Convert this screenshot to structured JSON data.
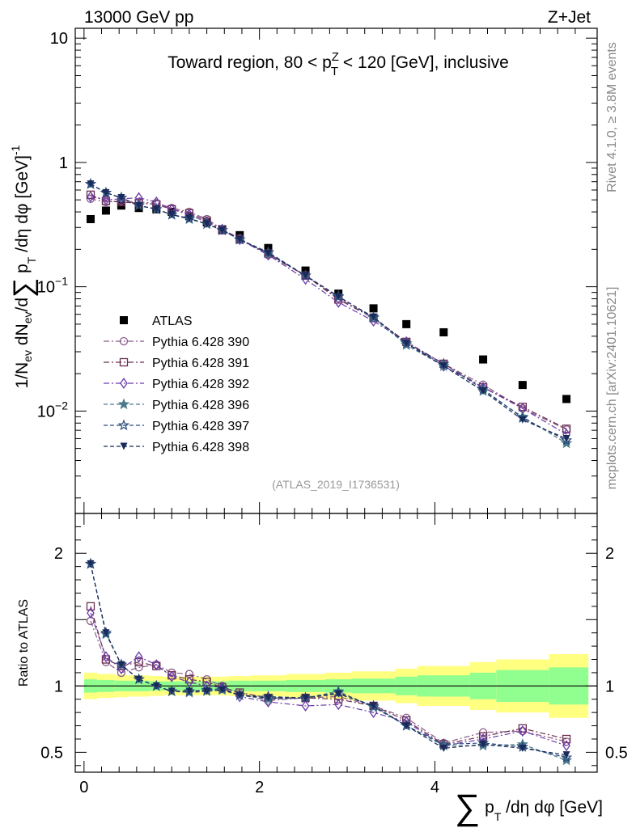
{
  "header": {
    "left": "13000 GeV pp",
    "right": "Z+Jet"
  },
  "side_labels": {
    "rivet": "Rivet 4.1.0, ≥ 3.8M events",
    "mcplots": "mcplots.cern.ch [arXiv:2401.10621]"
  },
  "chart_data": [
    {
      "type": "scatter",
      "panel": "main",
      "title": "Toward region, 80 < p_T^Z < 120 [GeV], inclusive",
      "title_parts": {
        "pre": "Toward region, 80 < p",
        "sup": "Z",
        "sub": "T",
        "post": " < 120 [GeV], inclusive"
      },
      "analysis_label": "(ATLAS_2019_I1736531)",
      "ylabel": "1/N_ev dN_ev/d∑p_T/dη dφ [GeV]^-1",
      "yscale": "log",
      "ylim": [
        0.0015,
        12
      ],
      "xlim": [
        -0.1,
        5.85
      ],
      "yticks": [
        {
          "value": 10,
          "label": "10"
        },
        {
          "value": 1,
          "label": "1"
        },
        {
          "value": 0.1,
          "label": "10",
          "exp": "−1"
        },
        {
          "value": 0.01,
          "label": "10",
          "exp": "−2"
        }
      ],
      "x": [
        0.075,
        0.25,
        0.425,
        0.625,
        0.825,
        1.0,
        1.2,
        1.4,
        1.575,
        1.775,
        2.1,
        2.525,
        2.9,
        3.3,
        3.675,
        4.1,
        4.55,
        5.0,
        5.5
      ],
      "series": [
        {
          "name": "ATLAS",
          "marker": "filled-square",
          "color": "#000000",
          "values": [
            0.35,
            0.41,
            0.45,
            0.43,
            0.42,
            0.4,
            0.37,
            0.33,
            0.29,
            0.26,
            0.205,
            0.135,
            0.088,
            0.067,
            0.05,
            0.043,
            0.026,
            0.0162,
            0.0125
          ]
        },
        {
          "name": "Pythia 6.428 390",
          "marker": "open-circle",
          "color": "#8a5a8a",
          "line": "dash-dot",
          "values": [
            0.51,
            0.48,
            0.49,
            0.48,
            0.47,
            0.43,
            0.4,
            0.35,
            0.29,
            0.245,
            0.18,
            0.123,
            0.081,
            0.056,
            0.036,
            0.024,
            0.0163,
            0.0105,
            0.0071
          ]
        },
        {
          "name": "Pythia 6.428 391",
          "marker": "open-square",
          "color": "#6a3050",
          "line": "dash-dot",
          "values": [
            0.55,
            0.49,
            0.48,
            0.47,
            0.46,
            0.42,
            0.39,
            0.34,
            0.285,
            0.24,
            0.185,
            0.123,
            0.079,
            0.056,
            0.036,
            0.024,
            0.0155,
            0.0108,
            0.0072
          ]
        },
        {
          "name": "Pythia 6.428 392",
          "marker": "open-diamond",
          "color": "#6a3aa8",
          "line": "dash-dot",
          "values": [
            0.53,
            0.5,
            0.51,
            0.52,
            0.48,
            0.42,
            0.38,
            0.33,
            0.29,
            0.24,
            0.18,
            0.115,
            0.075,
            0.053,
            0.036,
            0.023,
            0.0155,
            0.0105,
            0.0065
          ]
        },
        {
          "name": "Pythia 6.428 396",
          "marker": "filled-star",
          "color": "#4a7a8a",
          "line": "dash",
          "values": [
            0.67,
            0.57,
            0.52,
            0.45,
            0.42,
            0.38,
            0.35,
            0.32,
            0.285,
            0.24,
            0.185,
            0.123,
            0.084,
            0.056,
            0.034,
            0.023,
            0.0145,
            0.009,
            0.0055
          ]
        },
        {
          "name": "Pythia 6.428 397",
          "marker": "open-star",
          "color": "#2a4a7a",
          "line": "dash",
          "values": [
            0.67,
            0.57,
            0.52,
            0.45,
            0.42,
            0.38,
            0.355,
            0.32,
            0.285,
            0.24,
            0.19,
            0.123,
            0.083,
            0.057,
            0.035,
            0.024,
            0.015,
            0.0088,
            0.0058
          ]
        },
        {
          "name": "Pythia 6.428 398",
          "marker": "filled-triangle-down",
          "color": "#1a2a5a",
          "line": "dash",
          "values": [
            0.67,
            0.57,
            0.52,
            0.45,
            0.42,
            0.38,
            0.355,
            0.32,
            0.285,
            0.24,
            0.185,
            0.123,
            0.083,
            0.057,
            0.035,
            0.023,
            0.0145,
            0.0085,
            0.006
          ]
        }
      ]
    },
    {
      "type": "scatter",
      "panel": "ratio",
      "ylabel": "Ratio to ATLAS",
      "xlabel": "∑ p_T /dη dφ [GeV]",
      "xlabel_parts": {
        "sum": "∑",
        "p": " p",
        "sub": "T",
        "rest": " /dη dφ [GeV]"
      },
      "ylim": [
        0.35,
        2.3
      ],
      "xlim": [
        -0.1,
        5.85
      ],
      "yticks": [
        {
          "value": 0.5,
          "label": "0.5"
        },
        {
          "value": 1,
          "label": "1"
        },
        {
          "value": 2,
          "label": "2"
        }
      ],
      "xticks": [
        {
          "value": 0,
          "label": "0"
        },
        {
          "value": 2,
          "label": "2"
        },
        {
          "value": 4,
          "label": "4"
        }
      ],
      "bin_edges": [
        0.0,
        0.15,
        0.35,
        0.5,
        0.75,
        0.9,
        1.1,
        1.3,
        1.5,
        1.65,
        1.9,
        2.3,
        2.75,
        3.05,
        3.55,
        3.8,
        4.4,
        4.7,
        5.3,
        5.75
      ],
      "band_outer": [
        0.1,
        0.09,
        0.085,
        0.08,
        0.075,
        0.07,
        0.07,
        0.07,
        0.07,
        0.075,
        0.08,
        0.09,
        0.1,
        0.11,
        0.13,
        0.15,
        0.18,
        0.2,
        0.24
      ],
      "band_inner": [
        0.05,
        0.045,
        0.04,
        0.04,
        0.035,
        0.035,
        0.035,
        0.035,
        0.035,
        0.04,
        0.04,
        0.045,
        0.05,
        0.055,
        0.07,
        0.08,
        0.1,
        0.12,
        0.14
      ],
      "band_colors": {
        "outer": "#ffff80",
        "inner": "#90ff90"
      },
      "series": [
        {
          "name": "Pythia 6.428 390",
          "values": [
            1.49,
            1.18,
            1.1,
            1.14,
            1.16,
            1.1,
            1.09,
            1.05,
            1.0,
            0.94,
            0.89,
            0.91,
            0.92,
            0.85,
            0.76,
            0.57,
            0.65,
            0.66,
            0.58
          ]
        },
        {
          "name": "Pythia 6.428 391",
          "values": [
            1.6,
            1.2,
            1.15,
            1.18,
            1.15,
            1.08,
            1.05,
            1.03,
            0.99,
            0.95,
            0.91,
            0.91,
            0.9,
            0.85,
            0.74,
            0.56,
            0.62,
            0.68,
            0.6
          ]
        },
        {
          "name": "Pythia 6.428 392",
          "values": [
            1.55,
            1.22,
            1.13,
            1.22,
            1.16,
            1.07,
            1.03,
            1.0,
            0.99,
            0.92,
            0.88,
            0.85,
            0.86,
            0.8,
            0.73,
            0.55,
            0.6,
            0.66,
            0.55
          ]
        },
        {
          "name": "Pythia 6.428 396",
          "values": [
            1.92,
            1.39,
            1.16,
            1.05,
            1.0,
            0.96,
            0.95,
            0.96,
            0.97,
            0.93,
            0.9,
            0.91,
            0.96,
            0.84,
            0.7,
            0.55,
            0.55,
            0.56,
            0.44
          ]
        },
        {
          "name": "Pythia 6.428 397",
          "values": [
            1.92,
            1.4,
            1.16,
            1.05,
            1.0,
            0.96,
            0.96,
            0.97,
            0.98,
            0.93,
            0.92,
            0.91,
            0.95,
            0.85,
            0.7,
            0.56,
            0.57,
            0.54,
            0.46
          ]
        },
        {
          "name": "Pythia 6.428 398",
          "values": [
            1.92,
            1.4,
            1.16,
            1.05,
            1.0,
            0.96,
            0.96,
            0.96,
            0.97,
            0.93,
            0.91,
            0.91,
            0.94,
            0.85,
            0.7,
            0.53,
            0.56,
            0.53,
            0.48
          ]
        }
      ]
    }
  ]
}
